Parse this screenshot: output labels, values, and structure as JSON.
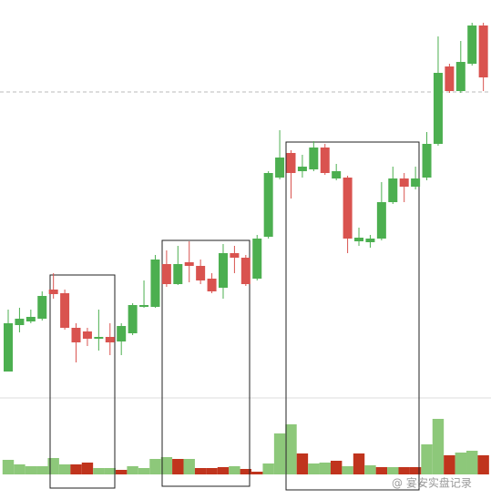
{
  "chart_data": {
    "type": "candlestick",
    "ylim": [
      0,
      548
    ],
    "open": [
      140,
      191,
      195,
      198,
      230,
      226,
      188,
      184,
      176,
      178,
      173,
      182,
      211,
      211,
      258,
      236,
      260,
      256,
      242,
      232,
      270,
      265,
      242,
      288,
      353,
      380,
      360,
      362,
      386,
      352,
      353,
      283,
      282,
      286,
      326,
      352,
      343,
      353,
      390,
      475,
      448,
      478,
      520
    ],
    "high": [
      208,
      210,
      208,
      228,
      248,
      230,
      193,
      188,
      208,
      193,
      193,
      215,
      240,
      268,
      273,
      278,
      283,
      263,
      248,
      280,
      278,
      268,
      290,
      360,
      405,
      383,
      378,
      393,
      390,
      368,
      355,
      298,
      290,
      348,
      365,
      358,
      365,
      403,
      508,
      478,
      503,
      523,
      523
    ],
    "low": [
      140,
      183,
      193,
      196,
      220,
      186,
      150,
      168,
      163,
      158,
      158,
      180,
      210,
      210,
      233,
      235,
      238,
      236,
      226,
      220,
      248,
      234,
      240,
      286,
      351,
      330,
      353,
      360,
      356,
      350,
      270,
      278,
      276,
      284,
      324,
      326,
      340,
      350,
      388,
      446,
      446,
      476,
      448
    ],
    "close": [
      193,
      198,
      200,
      223,
      225,
      188,
      172,
      176,
      178,
      172,
      190,
      213,
      213,
      263,
      236,
      258,
      256,
      240,
      228,
      270,
      265,
      236,
      286,
      358,
      375,
      358,
      365,
      386,
      358,
      360,
      286,
      287,
      286,
      326,
      352,
      343,
      352,
      390,
      468,
      448,
      480,
      520,
      463
    ],
    "up_color": "#4caf50",
    "down_color": "#d9534f",
    "volume": [
      16,
      11,
      9,
      9,
      18,
      11,
      11,
      13,
      7,
      7,
      5,
      9,
      7,
      17,
      19,
      17,
      17,
      7,
      7,
      8,
      9,
      6,
      3,
      12,
      45,
      55,
      23,
      12,
      13,
      15,
      9,
      23,
      10,
      8,
      8,
      8,
      8,
      33,
      61,
      21,
      24,
      26,
      21
    ],
    "volume_colors": [
      "#8dc87a",
      "#8dc87a",
      "#8dc87a",
      "#8dc87a",
      "#8dc87a",
      "#8dc87a",
      "#c0341d",
      "#c0341d",
      "#8dc87a",
      "#8dc87a",
      "#c0341d",
      "#8dc87a",
      "#8dc87a",
      "#8dc87a",
      "#8dc87a",
      "#c0341d",
      "#8dc87a",
      "#c0341d",
      "#c0341d",
      "#c0341d",
      "#8dc87a",
      "#c0341d",
      "#c0341d",
      "#8dc87a",
      "#8dc87a",
      "#8dc87a",
      "#c0341d",
      "#8dc87a",
      "#8dc87a",
      "#c0341d",
      "#8dc87a",
      "#c0341d",
      "#8dc87a",
      "#c0341d",
      "#8dc87a",
      "#c0341d",
      "#c0341d",
      "#8dc87a",
      "#8dc87a",
      "#c0341d",
      "#8dc87a",
      "#8dc87a",
      "#c0341d"
    ],
    "ref_line": 447,
    "watermark": "@ 宴安实盘记录"
  }
}
